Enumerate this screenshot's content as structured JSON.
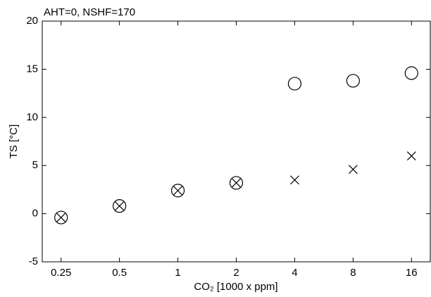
{
  "chart_data": {
    "type": "scatter",
    "title": "AHT=0, NSHF=170",
    "x_label": "CO₂ [1000 x ppm]",
    "y_label": "TS [°C]",
    "x": [
      0.25,
      0.5,
      1,
      2,
      4,
      8,
      16
    ],
    "series": [
      {
        "marker": "circle",
        "color": "#000000",
        "values": [
          -0.4,
          0.8,
          2.4,
          3.2,
          13.5,
          13.8,
          14.6
        ]
      },
      {
        "marker": "cross",
        "color": "#000000",
        "values": [
          -0.4,
          0.8,
          2.4,
          3.2,
          3.5,
          4.6,
          6.0
        ]
      }
    ],
    "xscale": "log",
    "xlim": [
      0.2,
      20
    ],
    "xticks": [
      0.25,
      0.5,
      1,
      2,
      4,
      8,
      16
    ],
    "ylim": [
      -5,
      20
    ],
    "yticks": [
      -5,
      0,
      5,
      10,
      15,
      20
    ],
    "grid": false
  }
}
